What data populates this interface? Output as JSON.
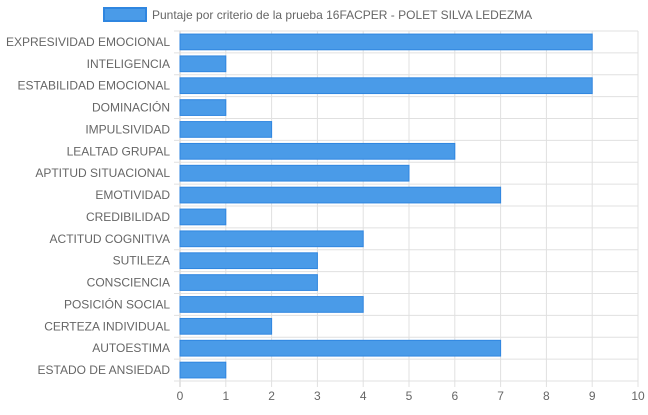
{
  "chart_data": {
    "type": "bar",
    "orientation": "horizontal",
    "legend": {
      "label": "Puntaje por criterio de la prueba 16FACPER - POLET SILVA LEDEZMA",
      "placement": "top"
    },
    "categories": [
      "EXPRESIVIDAD EMOCIONAL",
      "INTELIGENCIA",
      "ESTABILIDAD EMOCIONAL",
      "DOMINACIÓN",
      "IMPULSIVIDAD",
      "LEALTAD GRUPAL",
      "APTITUD SITUACIONAL",
      "EMOTIVIDAD",
      "CREDIBILIDAD",
      "ACTITUD COGNITIVA",
      "SUTILEZA",
      "CONSCIENCIA",
      "POSICIÓN SOCIAL",
      "CERTEZA INDIVIDUAL",
      "AUTOESTIMA",
      "ESTADO DE ANSIEDAD"
    ],
    "series": [
      {
        "name": "Puntaje por criterio de la prueba 16FACPER - POLET SILVA LEDEZMA",
        "values": [
          9,
          1,
          9,
          1,
          2,
          6,
          5,
          7,
          1,
          4,
          3,
          3,
          4,
          2,
          7,
          1
        ]
      }
    ],
    "xlim": [
      0,
      10
    ],
    "x_ticks": [
      "0",
      "1",
      "2",
      "3",
      "4",
      "5",
      "6",
      "7",
      "8",
      "9",
      "10"
    ],
    "grid": true,
    "colors": {
      "bar_fill": "#4a9be8",
      "bar_stroke": "#2f86e0",
      "grid": "#e0e0e0",
      "label": "#666666"
    }
  }
}
